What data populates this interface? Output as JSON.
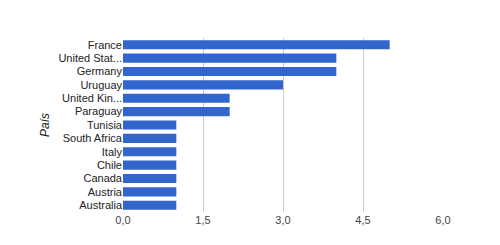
{
  "chart_data": {
    "type": "bar",
    "orientation": "horizontal",
    "y_label": "País",
    "categories": [
      "France",
      "United Stat...",
      "Germany",
      "Uruguay",
      "United Kin...",
      "Paraguay",
      "Tunisia",
      "South Africa",
      "Italy",
      "Chile",
      "Canada",
      "Austria",
      "Australia"
    ],
    "values": [
      5,
      4,
      4,
      3,
      2,
      2,
      1,
      1,
      1,
      1,
      1,
      1,
      1
    ],
    "color": "#3366cc",
    "xlim": [
      0,
      6
    ],
    "xticks": [
      {
        "value": 0,
        "label": "0,0"
      },
      {
        "value": 1.5,
        "label": "1,5"
      },
      {
        "value": 3,
        "label": "3,0"
      },
      {
        "value": 4.5,
        "label": "4,5"
      },
      {
        "value": 6,
        "label": "6,0"
      }
    ],
    "grid": true
  }
}
